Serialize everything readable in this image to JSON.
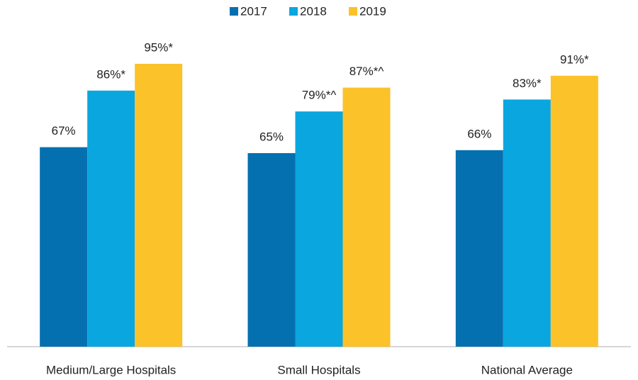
{
  "chart_data": {
    "type": "bar",
    "categories": [
      "Medium/Large Hospitals",
      "Small Hospitals",
      "National Average"
    ],
    "series": [
      {
        "name": "2017",
        "color": "#0570b0",
        "values": [
          67,
          65,
          66
        ],
        "value_labels": [
          "67%",
          "65%",
          "66%"
        ]
      },
      {
        "name": "2018",
        "color": "#0aa6df",
        "values": [
          86,
          79,
          83
        ],
        "value_labels": [
          "86%*",
          "79%*^",
          "83%*"
        ]
      },
      {
        "name": "2019",
        "color": "#fcc22a",
        "values": [
          95,
          87,
          91
        ],
        "value_labels": [
          "95%*",
          "87%*^",
          "91%*"
        ]
      }
    ],
    "ylim": [
      0,
      100
    ],
    "legend": "top"
  }
}
